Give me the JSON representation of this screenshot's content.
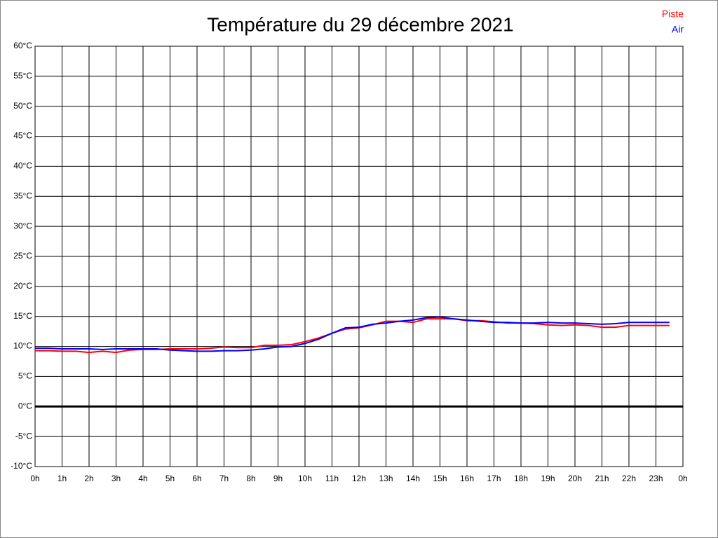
{
  "chart_data": {
    "type": "line",
    "title": "Température du 29 décembre 2021",
    "x": [
      0,
      0.5,
      1,
      1.5,
      2,
      2.5,
      3,
      3.5,
      4,
      4.5,
      5,
      5.5,
      6,
      6.5,
      7,
      7.5,
      8,
      8.5,
      9,
      9.5,
      10,
      10.5,
      11,
      11.5,
      12,
      12.5,
      13,
      13.5,
      14,
      14.5,
      15,
      15.5,
      16,
      16.5,
      17,
      17.5,
      18,
      18.5,
      19,
      19.5,
      20,
      20.5,
      21,
      21.5,
      22,
      22.5,
      23,
      23.5
    ],
    "series": [
      {
        "name": "Piste",
        "color": "#ff0000",
        "values": [
          9.3,
          9.3,
          9.2,
          9.2,
          9.0,
          9.2,
          9.0,
          9.4,
          9.5,
          9.5,
          9.6,
          9.6,
          9.6,
          9.7,
          9.9,
          9.8,
          9.8,
          10.2,
          10.2,
          10.3,
          10.8,
          11.4,
          12.2,
          12.9,
          13.1,
          13.6,
          14.2,
          14.2,
          14.0,
          14.6,
          14.6,
          14.6,
          14.3,
          14.3,
          14.1,
          13.9,
          13.9,
          13.8,
          13.6,
          13.5,
          13.6,
          13.5,
          13.2,
          13.2,
          13.5,
          13.5,
          13.5,
          13.5
        ]
      },
      {
        "name": "Air",
        "color": "#0000ff",
        "values": [
          9.7,
          9.7,
          9.6,
          9.6,
          9.6,
          9.5,
          9.6,
          9.6,
          9.6,
          9.6,
          9.4,
          9.3,
          9.2,
          9.2,
          9.3,
          9.3,
          9.4,
          9.6,
          9.9,
          10.0,
          10.5,
          11.2,
          12.2,
          13.1,
          13.2,
          13.7,
          13.9,
          14.2,
          14.4,
          14.8,
          14.9,
          14.6,
          14.4,
          14.2,
          14.0,
          14.0,
          13.9,
          13.9,
          14.0,
          13.9,
          13.9,
          13.8,
          13.7,
          13.8,
          14.0,
          14.0,
          14.0,
          14.0
        ]
      }
    ],
    "xlim": [
      0,
      24
    ],
    "xticks": [
      {
        "value": 0,
        "label": "0h"
      },
      {
        "value": 1,
        "label": "1h"
      },
      {
        "value": 2,
        "label": "2h"
      },
      {
        "value": 3,
        "label": "3h"
      },
      {
        "value": 4,
        "label": "4h"
      },
      {
        "value": 5,
        "label": "5h"
      },
      {
        "value": 6,
        "label": "6h"
      },
      {
        "value": 7,
        "label": "7h"
      },
      {
        "value": 8,
        "label": "8h"
      },
      {
        "value": 9,
        "label": "9h"
      },
      {
        "value": 10,
        "label": "10h"
      },
      {
        "value": 11,
        "label": "11h"
      },
      {
        "value": 12,
        "label": "12h"
      },
      {
        "value": 13,
        "label": "13h"
      },
      {
        "value": 14,
        "label": "14h"
      },
      {
        "value": 15,
        "label": "15h"
      },
      {
        "value": 16,
        "label": "16h"
      },
      {
        "value": 17,
        "label": "17h"
      },
      {
        "value": 18,
        "label": "18h"
      },
      {
        "value": 19,
        "label": "19h"
      },
      {
        "value": 20,
        "label": "20h"
      },
      {
        "value": 21,
        "label": "21h"
      },
      {
        "value": 22,
        "label": "22h"
      },
      {
        "value": 23,
        "label": "23h"
      },
      {
        "value": 24,
        "label": "0h"
      }
    ],
    "ylim": [
      -10,
      60
    ],
    "yticks": [
      {
        "value": -10,
        "label": "-10°C"
      },
      {
        "value": -5,
        "label": "-5°C"
      },
      {
        "value": 0,
        "label": "0°C"
      },
      {
        "value": 5,
        "label": "5°C"
      },
      {
        "value": 10,
        "label": "10°C"
      },
      {
        "value": 15,
        "label": "15°C"
      },
      {
        "value": 20,
        "label": "20°C"
      },
      {
        "value": 25,
        "label": "25°C"
      },
      {
        "value": 30,
        "label": "30°C"
      },
      {
        "value": 35,
        "label": "35°C"
      },
      {
        "value": 40,
        "label": "40°C"
      },
      {
        "value": 45,
        "label": "45°C"
      },
      {
        "value": 50,
        "label": "50°C"
      },
      {
        "value": 55,
        "label": "55°C"
      },
      {
        "value": 60,
        "label": "60°C"
      }
    ],
    "grid": true,
    "legend": "top-right"
  }
}
